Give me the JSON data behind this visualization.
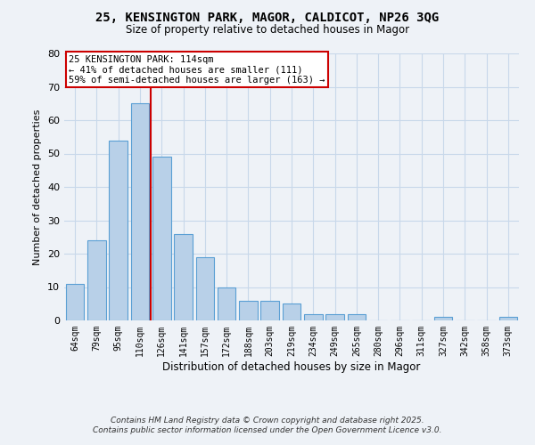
{
  "title1": "25, KENSINGTON PARK, MAGOR, CALDICOT, NP26 3QG",
  "title2": "Size of property relative to detached houses in Magor",
  "xlabel": "Distribution of detached houses by size in Magor",
  "ylabel": "Number of detached properties",
  "bins": [
    "64sqm",
    "79sqm",
    "95sqm",
    "110sqm",
    "126sqm",
    "141sqm",
    "157sqm",
    "172sqm",
    "188sqm",
    "203sqm",
    "219sqm",
    "234sqm",
    "249sqm",
    "265sqm",
    "280sqm",
    "296sqm",
    "311sqm",
    "327sqm",
    "342sqm",
    "358sqm",
    "373sqm"
  ],
  "values": [
    11,
    24,
    54,
    65,
    49,
    26,
    19,
    10,
    6,
    6,
    5,
    2,
    2,
    2,
    0,
    0,
    0,
    1,
    0,
    0,
    1
  ],
  "bar_color": "#b8d0e8",
  "bar_edge_color": "#5a9fd4",
  "grid_color": "#c8d8ea",
  "red_line_x": 3.5,
  "annotation_line1": "25 KENSINGTON PARK: 114sqm",
  "annotation_line2": "← 41% of detached houses are smaller (111)",
  "annotation_line3": "59% of semi-detached houses are larger (163) →",
  "annotation_box_color": "#ffffff",
  "annotation_box_edge": "#cc0000",
  "footer1": "Contains HM Land Registry data © Crown copyright and database right 2025.",
  "footer2": "Contains public sector information licensed under the Open Government Licence v3.0.",
  "ylim": [
    0,
    80
  ],
  "yticks": [
    0,
    10,
    20,
    30,
    40,
    50,
    60,
    70,
    80
  ],
  "background_color": "#eef2f7"
}
